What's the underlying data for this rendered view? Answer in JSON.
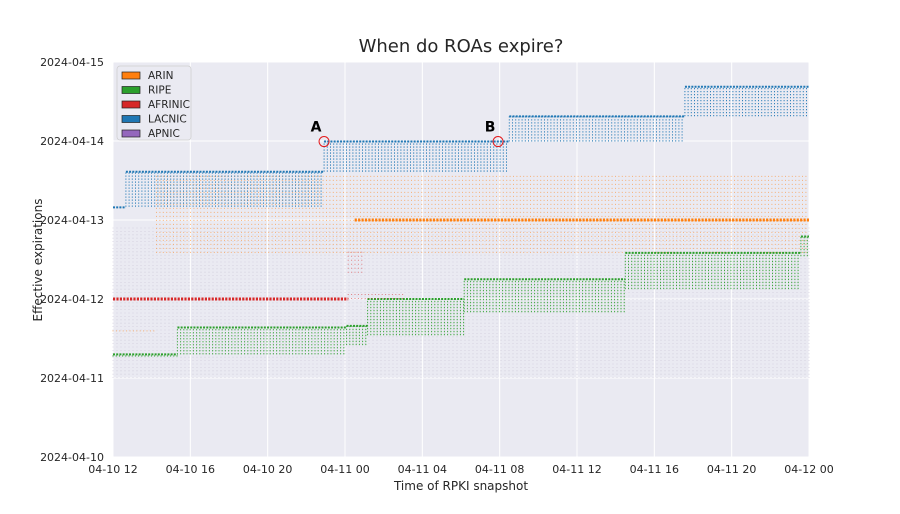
{
  "chart_data": {
    "type": "scatter",
    "title": "When do ROAs expire?",
    "xlabel": "Time of RPKI snapshot",
    "ylabel": "Effective expirations",
    "x_range": [
      "2024-04-10T12:00",
      "2024-04-12T00:00"
    ],
    "y_range": [
      "2024-04-10T00:00",
      "2024-04-15T00:00"
    ],
    "x_ticks": [
      {
        "value": "2024-04-10T12:00",
        "label": "04-10 12"
      },
      {
        "value": "2024-04-10T16:00",
        "label": "04-10 16"
      },
      {
        "value": "2024-04-10T20:00",
        "label": "04-10 20"
      },
      {
        "value": "2024-04-11T00:00",
        "label": "04-11 00"
      },
      {
        "value": "2024-04-11T04:00",
        "label": "04-11 04"
      },
      {
        "value": "2024-04-11T08:00",
        "label": "04-11 08"
      },
      {
        "value": "2024-04-11T12:00",
        "label": "04-11 12"
      },
      {
        "value": "2024-04-11T16:00",
        "label": "04-11 16"
      },
      {
        "value": "2024-04-11T20:00",
        "label": "04-11 20"
      },
      {
        "value": "2024-04-12T00:00",
        "label": "04-12 00"
      }
    ],
    "y_ticks": [
      {
        "value": "2024-04-10T00:00",
        "label": "2024-04-10"
      },
      {
        "value": "2024-04-11T00:00",
        "label": "2024-04-11"
      },
      {
        "value": "2024-04-12T00:00",
        "label": "2024-04-12"
      },
      {
        "value": "2024-04-13T00:00",
        "label": "2024-04-13"
      },
      {
        "value": "2024-04-14T00:00",
        "label": "2024-04-14"
      },
      {
        "value": "2024-04-15T00:00",
        "label": "2024-04-15"
      }
    ],
    "grid": true,
    "legend_position": "top-left",
    "series": [
      {
        "name": "ARIN",
        "color": "#ff7f0e",
        "bands": [
          {
            "x_start": "2024-04-10T12:00",
            "x_end": "2024-04-10T14:15",
            "y_low": "2024-04-11T14:10",
            "y_high": "2024-04-11T15:10"
          },
          {
            "x_start": "2024-04-10T14:15",
            "x_end": "2024-04-12T00:00",
            "y_low": "2024-04-12T14:00",
            "y_high": "2024-04-13T13:30"
          }
        ],
        "lines": [
          {
            "x_start": "2024-04-11T00:30",
            "x_end": "2024-04-12T00:00",
            "y": "2024-04-13T00:00"
          }
        ]
      },
      {
        "name": "RIPE",
        "color": "#2ca02c",
        "steps": [
          {
            "x_start": "2024-04-10T12:00",
            "x_end": "2024-04-10T15:20",
            "y_low": "2024-04-11T06:30",
            "y_high": "2024-04-11T07:10"
          },
          {
            "x_start": "2024-04-10T15:20",
            "x_end": "2024-04-11T00:05",
            "y_low": "2024-04-11T07:10",
            "y_high": "2024-04-11T15:20"
          },
          {
            "x_start": "2024-04-11T00:05",
            "x_end": "2024-04-11T01:10",
            "y_low": "2024-04-11T10:00",
            "y_high": "2024-04-11T15:50"
          },
          {
            "x_start": "2024-04-11T01:10",
            "x_end": "2024-04-11T06:10",
            "y_low": "2024-04-11T13:00",
            "y_high": "2024-04-12T00:00"
          },
          {
            "x_start": "2024-04-11T06:10",
            "x_end": "2024-04-11T14:30",
            "y_low": "2024-04-11T20:00",
            "y_high": "2024-04-12T06:00"
          },
          {
            "x_start": "2024-04-11T14:30",
            "x_end": "2024-04-11T23:35",
            "y_low": "2024-04-12T03:00",
            "y_high": "2024-04-12T14:00"
          },
          {
            "x_start": "2024-04-11T23:35",
            "x_end": "2024-04-12T00:00",
            "y_low": "2024-04-12T13:00",
            "y_high": "2024-04-12T19:00"
          }
        ]
      },
      {
        "name": "AFRINIC",
        "color": "#d62728",
        "lines": [
          {
            "x_start": "2024-04-10T12:00",
            "x_end": "2024-04-11T00:10",
            "y": "2024-04-12T00:00"
          }
        ],
        "bands": [
          {
            "x_start": "2024-04-11T00:10",
            "x_end": "2024-04-11T03:00",
            "y_low": "2024-04-12T00:00",
            "y_high": "2024-04-12T02:10"
          },
          {
            "x_start": "2024-04-11T00:10",
            "x_end": "2024-04-11T01:00",
            "y_low": "2024-04-12T08:00",
            "y_high": "2024-04-12T15:00"
          }
        ]
      },
      {
        "name": "LACNIC",
        "color": "#1f77b4",
        "steps": [
          {
            "x_start": "2024-04-10T12:00",
            "x_end": "2024-04-10T12:40",
            "y_low": "2024-04-13T03:50",
            "y_high": "2024-04-13T03:50"
          },
          {
            "x_start": "2024-04-10T12:40",
            "x_end": "2024-04-10T22:55",
            "y_low": "2024-04-13T04:00",
            "y_high": "2024-04-13T14:40"
          },
          {
            "x_start": "2024-04-10T22:55",
            "x_end": "2024-04-11T08:30",
            "y_low": "2024-04-13T14:40",
            "y_high": "2024-04-13T23:50"
          },
          {
            "x_start": "2024-04-11T08:30",
            "x_end": "2024-04-11T17:35",
            "y_low": "2024-04-13T23:50",
            "y_high": "2024-04-14T07:30"
          },
          {
            "x_start": "2024-04-11T17:35",
            "x_end": "2024-04-12T00:00",
            "y_low": "2024-04-14T07:30",
            "y_high": "2024-04-14T16:30"
          }
        ]
      },
      {
        "name": "APNIC",
        "color": "#9467bd",
        "bands": [
          {
            "x_start": "2024-04-10T12:00",
            "x_end": "2024-04-12T00:00",
            "y_low": "2024-04-11T00:00",
            "y_high": "2024-04-12T22:00",
            "faint": true
          }
        ]
      }
    ],
    "annotations": [
      {
        "label": "A",
        "x": "2024-04-10T22:55",
        "y": "2024-04-13T23:50"
      },
      {
        "label": "B",
        "x": "2024-04-11T07:55",
        "y": "2024-04-13T23:50"
      }
    ]
  }
}
